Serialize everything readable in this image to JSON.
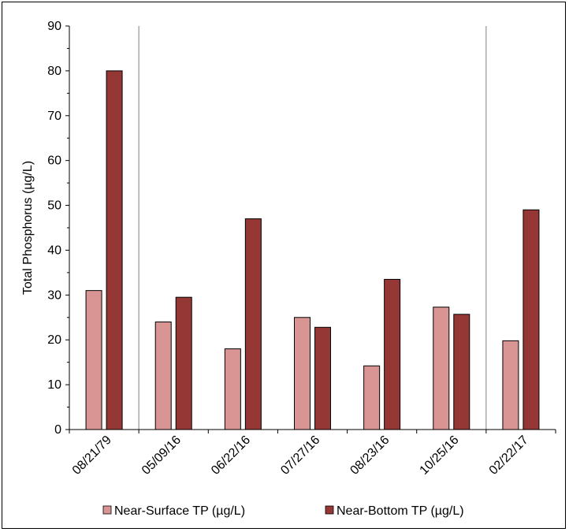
{
  "chart_data": {
    "type": "bar",
    "categories": [
      "08/21/79",
      "05/09/16",
      "06/22/16",
      "07/27/16",
      "08/23/16",
      "10/25/16",
      "02/22/17"
    ],
    "series": [
      {
        "name": "Near-Surface TP (µg/L)",
        "color": "#d99594",
        "values": [
          31,
          24,
          18,
          25,
          14.2,
          27.3,
          19.8
        ]
      },
      {
        "name": "Near-Bottom TP (µg/L)",
        "color": "#953735",
        "values": [
          80,
          29.5,
          47,
          22.8,
          33.5,
          25.7,
          49
        ]
      }
    ],
    "title": "",
    "xlabel": "",
    "ylabel": "Total Phosphorus (µg/L)",
    "ylim": [
      0,
      90
    ],
    "yticks": [
      0,
      10,
      20,
      30,
      40,
      50,
      60,
      70,
      80,
      90
    ],
    "vertical_separators_after_categories": [
      "08/21/79",
      "10/25/16"
    ],
    "grid": false,
    "legend_position": "bottom"
  }
}
